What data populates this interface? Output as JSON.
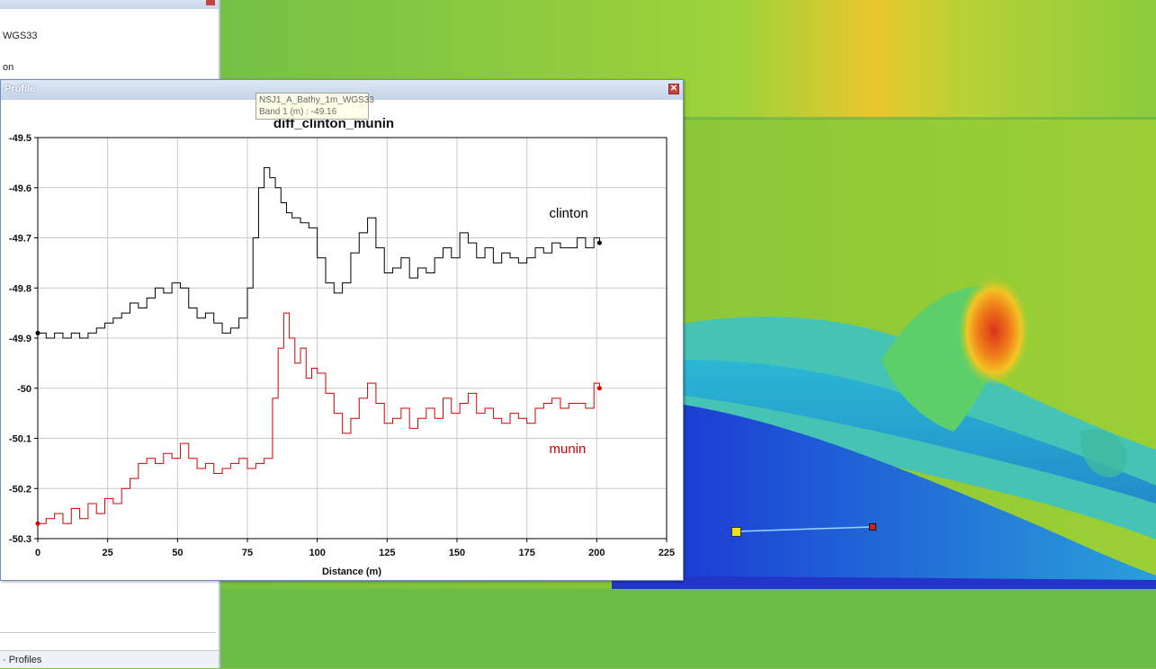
{
  "left_panel": {
    "item1": "WGS33",
    "item2": "on",
    "status_label": "· Profiles"
  },
  "window": {
    "title": "Profile",
    "close_icon": "close-icon"
  },
  "tooltip": {
    "line1": "NSJ1_A_Bathy_1m_WGS33",
    "line2": "Band 1 (m) : -49.16"
  },
  "colors": {
    "clinton": "#000000",
    "munin": "#d40000",
    "marker_start": "#f4e01a",
    "marker_end": "#d42020"
  },
  "chart_data": {
    "type": "line",
    "title": "diff_clinton_munin",
    "xlabel": "Distance (m)",
    "ylabel": "",
    "xlim": [
      0,
      225
    ],
    "ylim": [
      -50.3,
      -49.5
    ],
    "x_ticks": [
      "0",
      "25",
      "50",
      "75",
      "100",
      "125",
      "150",
      "175",
      "200",
      "225"
    ],
    "y_ticks": [
      "-49.5",
      "-49.6",
      "-49.7",
      "-49.8",
      "-49.9",
      "-50",
      "-50.1",
      "-50.2",
      "-50.3"
    ],
    "grid": true,
    "series": [
      {
        "name": "clinton",
        "annotation": "clinton",
        "x": [
          0,
          3,
          6,
          9,
          12,
          15,
          18,
          21,
          24,
          27,
          30,
          33,
          36,
          39,
          42,
          45,
          48,
          51,
          54,
          57,
          60,
          63,
          66,
          69,
          72,
          75,
          77,
          79,
          81,
          83,
          85,
          87,
          89,
          91,
          94,
          97,
          100,
          103,
          106,
          109,
          112,
          115,
          118,
          121,
          124,
          127,
          130,
          133,
          136,
          139,
          142,
          145,
          148,
          151,
          154,
          157,
          160,
          163,
          166,
          169,
          172,
          175,
          178,
          181,
          184,
          187,
          190,
          193,
          196,
          199,
          201
        ],
        "values": [
          -49.89,
          -49.9,
          -49.89,
          -49.9,
          -49.89,
          -49.9,
          -49.89,
          -49.88,
          -49.87,
          -49.86,
          -49.85,
          -49.83,
          -49.84,
          -49.82,
          -49.8,
          -49.81,
          -49.79,
          -49.8,
          -49.84,
          -49.86,
          -49.85,
          -49.87,
          -49.89,
          -49.88,
          -49.86,
          -49.8,
          -49.7,
          -49.6,
          -49.56,
          -49.58,
          -49.6,
          -49.63,
          -49.65,
          -49.66,
          -49.67,
          -49.68,
          -49.74,
          -49.79,
          -49.81,
          -49.79,
          -49.73,
          -49.69,
          -49.66,
          -49.72,
          -49.77,
          -49.76,
          -49.74,
          -49.78,
          -49.76,
          -49.77,
          -49.74,
          -49.72,
          -49.74,
          -49.69,
          -49.71,
          -49.74,
          -49.72,
          -49.75,
          -49.73,
          -49.74,
          -49.75,
          -49.74,
          -49.72,
          -49.73,
          -49.71,
          -49.72,
          -49.72,
          -49.7,
          -49.72,
          -49.7,
          -49.71
        ]
      },
      {
        "name": "munin",
        "annotation": "munin",
        "x": [
          0,
          3,
          6,
          9,
          12,
          15,
          18,
          21,
          24,
          27,
          30,
          33,
          36,
          39,
          42,
          45,
          48,
          51,
          54,
          57,
          60,
          63,
          66,
          69,
          72,
          75,
          78,
          81,
          84,
          86,
          88,
          90,
          92,
          94,
          96,
          98,
          100,
          103,
          106,
          109,
          112,
          115,
          118,
          121,
          124,
          127,
          130,
          133,
          136,
          139,
          142,
          145,
          148,
          151,
          154,
          157,
          160,
          163,
          166,
          169,
          172,
          175,
          178,
          181,
          184,
          187,
          190,
          193,
          196,
          199,
          201
        ],
        "values": [
          -50.27,
          -50.26,
          -50.25,
          -50.27,
          -50.24,
          -50.26,
          -50.23,
          -50.25,
          -50.22,
          -50.23,
          -50.2,
          -50.18,
          -50.15,
          -50.14,
          -50.15,
          -50.13,
          -50.14,
          -50.11,
          -50.14,
          -50.16,
          -50.15,
          -50.17,
          -50.16,
          -50.15,
          -50.14,
          -50.16,
          -50.15,
          -50.14,
          -50.02,
          -49.92,
          -49.85,
          -49.9,
          -49.95,
          -49.92,
          -49.98,
          -49.96,
          -49.97,
          -50.01,
          -50.05,
          -50.09,
          -50.06,
          -50.02,
          -49.99,
          -50.03,
          -50.07,
          -50.06,
          -50.04,
          -50.08,
          -50.06,
          -50.04,
          -50.06,
          -50.02,
          -50.05,
          -50.03,
          -50.01,
          -50.05,
          -50.04,
          -50.06,
          -50.07,
          -50.05,
          -50.06,
          -50.07,
          -50.04,
          -50.03,
          -50.02,
          -50.04,
          -50.03,
          -50.03,
          -50.04,
          -49.99,
          -50.0
        ]
      }
    ]
  }
}
